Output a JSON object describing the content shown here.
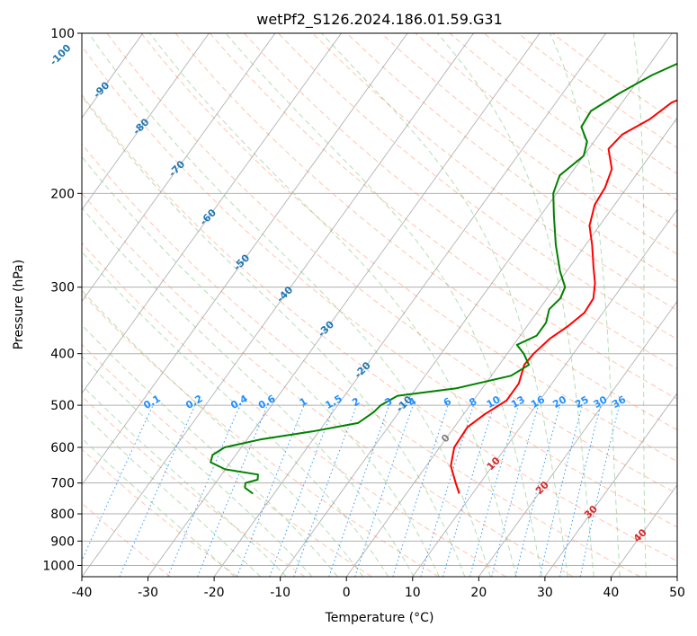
{
  "chart_data": {
    "type": "line",
    "title": "wetPf2_S126.2024.186.01.59.G31",
    "xlabel": "Temperature (°C)",
    "ylabel": "Pressure (hPa)",
    "xlim": [
      -40,
      50
    ],
    "ylim": [
      1050,
      100
    ],
    "y_scale": "log",
    "grid": true,
    "x_ticks": [
      "-40",
      "-30",
      "-20",
      "-10",
      "0",
      "10",
      "20",
      "30",
      "40",
      "50"
    ],
    "y_ticks": [
      "100",
      "200",
      "300",
      "400",
      "500",
      "600",
      "700",
      "800",
      "900",
      "1000"
    ],
    "series": [
      {
        "role": "temperature",
        "color": "#ff0000",
        "points": [
          [
            733,
            8.0
          ],
          [
            700,
            6.3
          ],
          [
            650,
            3.7
          ],
          [
            600,
            2.2
          ],
          [
            550,
            2.0
          ],
          [
            520,
            3.2
          ],
          [
            490,
            5.0
          ],
          [
            455,
            5.0
          ],
          [
            420,
            3.8
          ],
          [
            400,
            4.0
          ],
          [
            375,
            4.8
          ],
          [
            355,
            6.2
          ],
          [
            335,
            7.2
          ],
          [
            315,
            7.0
          ],
          [
            295,
            5.6
          ],
          [
            275,
            3.6
          ],
          [
            250,
            1.0
          ],
          [
            230,
            -1.5
          ],
          [
            210,
            -3.0
          ],
          [
            195,
            -3.3
          ],
          [
            180,
            -4.3
          ],
          [
            165,
            -7.0
          ],
          [
            155,
            -6.5
          ],
          [
            145,
            -4.0
          ],
          [
            135,
            -2.5
          ],
          [
            126,
            1.5
          ],
          [
            118,
            5.5
          ],
          [
            110,
            10.0
          ],
          [
            104,
            15.0
          ],
          [
            100,
            18.5
          ]
        ]
      },
      {
        "role": "dewpoint",
        "color": "#008000",
        "points": [
          [
            733,
            -23.2
          ],
          [
            715,
            -25.0
          ],
          [
            700,
            -25.5
          ],
          [
            690,
            -24.0
          ],
          [
            675,
            -24.5
          ],
          [
            660,
            -30.0
          ],
          [
            640,
            -33.0
          ],
          [
            620,
            -33.5
          ],
          [
            600,
            -32.5
          ],
          [
            580,
            -28.0
          ],
          [
            560,
            -21.0
          ],
          [
            540,
            -15.0
          ],
          [
            515,
            -13.8
          ],
          [
            500,
            -13.5
          ],
          [
            480,
            -12.0
          ],
          [
            465,
            -4.0
          ],
          [
            440,
            3.0
          ],
          [
            420,
            4.5
          ],
          [
            400,
            2.5
          ],
          [
            385,
            0.5
          ],
          [
            370,
            2.5
          ],
          [
            350,
            2.5
          ],
          [
            330,
            1.5
          ],
          [
            315,
            2.0
          ],
          [
            300,
            1.5
          ],
          [
            280,
            -1.0
          ],
          [
            250,
            -4.5
          ],
          [
            220,
            -8.0
          ],
          [
            200,
            -10.5
          ],
          [
            185,
            -11.5
          ],
          [
            170,
            -10.0
          ],
          [
            160,
            -11.0
          ],
          [
            150,
            -13.5
          ],
          [
            140,
            -13.8
          ],
          [
            130,
            -11.5
          ],
          [
            120,
            -8.5
          ],
          [
            110,
            -4.0
          ],
          [
            100,
            -0.5
          ]
        ]
      }
    ],
    "background_lines": {
      "dry_adiabat_color": "#ff7f50",
      "moist_adiabat_color": "#2ca02c",
      "mixing_ratio_color": "#1e90ff",
      "isotherm_color": "#808080",
      "isotherm_labels": [
        "-100",
        "-90",
        "-80",
        "-70",
        "-60",
        "-50",
        "-40",
        "-30",
        "-20",
        "-10",
        "0",
        "10",
        "20",
        "30",
        "40"
      ],
      "isotherm_label_colors": {
        "cold": "#1f77b4",
        "zero": "#808080",
        "warm": "#d62728"
      },
      "mixing_ratio_labels": [
        "0.1",
        "0.2",
        "0.4",
        "0.6",
        "1",
        "1.5",
        "2",
        "3",
        "4",
        "6",
        "8",
        "10",
        "13",
        "16",
        "20",
        "25",
        "30",
        "36"
      ]
    }
  }
}
